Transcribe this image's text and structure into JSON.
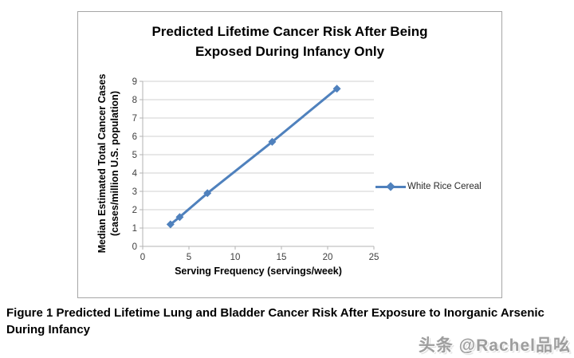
{
  "chart_data": {
    "type": "line",
    "title": "Predicted Lifetime Cancer Risk After Being Exposed During Infancy Only",
    "xlabel": "Serving Frequency (servings/week)",
    "ylabel_line1": "Median Estimated Total Cancer Cases",
    "ylabel_line2": "(cases/million U.S. population)",
    "series": [
      {
        "name": "White Rice Cereal",
        "x": [
          3,
          4,
          7,
          14,
          21
        ],
        "y": [
          1.2,
          1.6,
          2.9,
          5.7,
          8.6
        ]
      }
    ],
    "xlim": [
      0,
      25
    ],
    "ylim": [
      0,
      9
    ],
    "x_ticks": [
      0,
      5,
      10,
      15,
      20,
      25
    ],
    "y_ticks": [
      0,
      1,
      2,
      3,
      4,
      5,
      6,
      7,
      8,
      9
    ],
    "grid": "horizontal",
    "legend_position": "right",
    "line_color": "#4f81bd",
    "marker": "diamond",
    "gridline_color": "#d0d0d0",
    "axis_color": "#b3b3b3"
  },
  "caption": "Figure 1 Predicted Lifetime Lung and Bladder Cancer Risk After Exposure to Inorganic Arsenic During Infancy",
  "watermark": "头条 @Rachel品吆"
}
